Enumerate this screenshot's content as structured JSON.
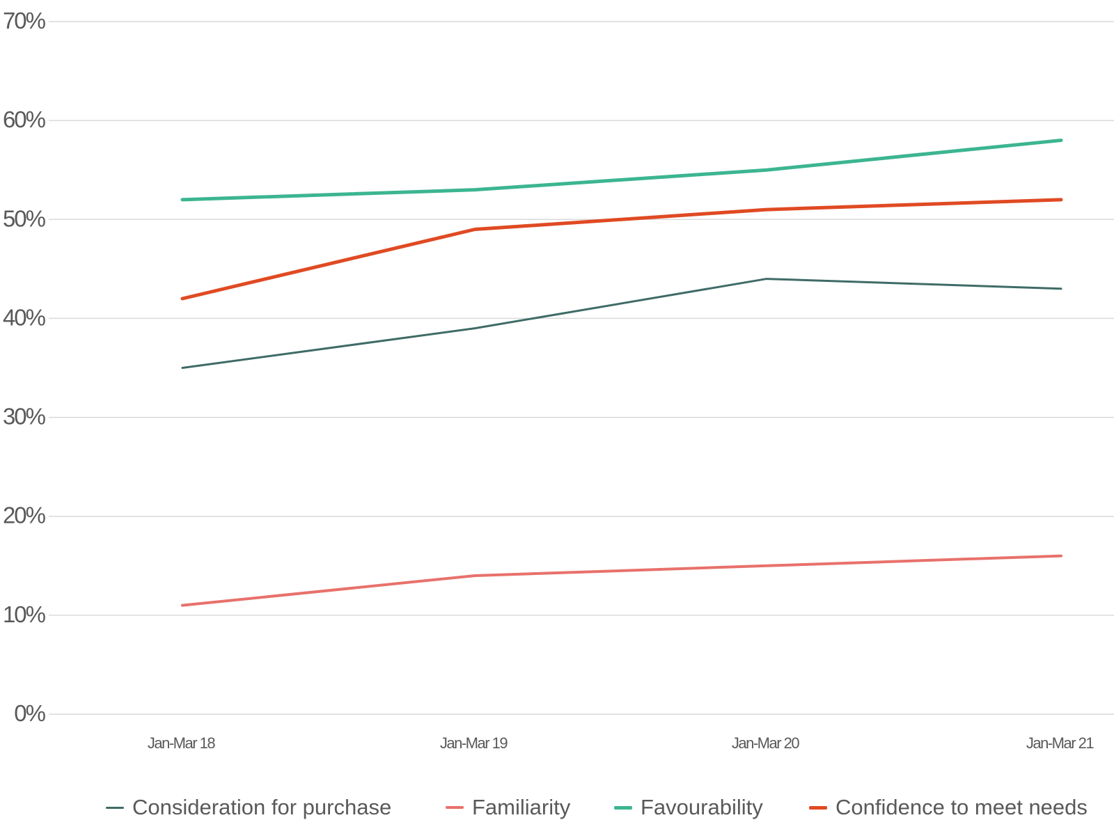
{
  "chart_data": {
    "type": "line",
    "categories": [
      "Jan-Mar 18",
      "Jan-Mar 19",
      "Jan-Mar 20",
      "Jan-Mar 21"
    ],
    "ylim": [
      0,
      70
    ],
    "yticks": [
      0,
      10,
      20,
      30,
      40,
      50,
      60,
      70
    ],
    "ytick_labels": [
      "0%",
      "10%",
      "20%",
      "30%",
      "40%",
      "50%",
      "60%",
      "70%"
    ],
    "grid": true,
    "legend_position": "bottom",
    "series": [
      {
        "name": "Consideration for purchase",
        "values": [
          35,
          39,
          44,
          43
        ],
        "color": "#3f6b66"
      },
      {
        "name": "Familiarity",
        "values": [
          11,
          14,
          15,
          16
        ],
        "color": "#e8716b"
      },
      {
        "name": "Favourability",
        "values": [
          52,
          53,
          55,
          58
        ],
        "color": "#3cb591"
      },
      {
        "name": "Confidence to meet needs",
        "values": [
          42,
          49,
          51,
          52
        ],
        "color": "#e04a23"
      }
    ]
  }
}
